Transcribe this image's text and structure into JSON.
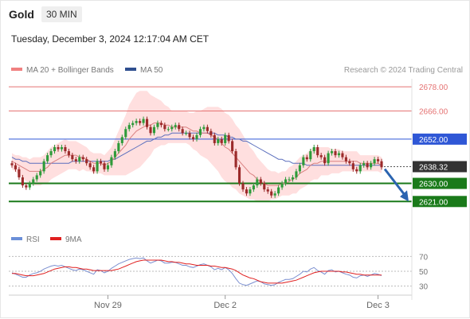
{
  "header": {
    "instrument": "Gold",
    "timeframe": "30 MIN",
    "timestamp": "Tuesday, December 3, 2024 12:17:04 AM CET"
  },
  "legend": {
    "ma20": "MA 20 + Bollinger Bands",
    "ma50": "MA 50",
    "rsi": "RSI",
    "rsi_ma": "9MA",
    "copyright": "Research © 2024 Trading Central"
  },
  "colors": {
    "bull": "#2e9b3a",
    "bear": "#9b2a2a",
    "bollinger": "#ffd2d2",
    "ma20": "#d98080",
    "ma50": "#5b6fbd",
    "resistance": "#e57373",
    "pivot": "#2f57d6",
    "support": "#1a7a1a",
    "current_price": "#333333",
    "rsi": "#7b8fd0",
    "rsi_ma": "#e02020",
    "forecast_arrow": "#2b64b0"
  },
  "chart_data": {
    "type": "candlestick",
    "price_ylim": [
      2614,
      2682
    ],
    "x_labels": [
      {
        "label": "Nov 29",
        "index": 27
      },
      {
        "label": "Dec 2",
        "index": 60
      },
      {
        "label": "Dec 3",
        "index": 103
      }
    ],
    "levels": [
      {
        "value": 2678.0,
        "label": "2678.00",
        "kind": "resistance"
      },
      {
        "value": 2666.0,
        "label": "2666.00",
        "kind": "resistance"
      },
      {
        "value": 2652.0,
        "label": "2652.00",
        "kind": "pivot"
      },
      {
        "value": 2638.32,
        "label": "2638.32",
        "kind": "current"
      },
      {
        "value": 2630.0,
        "label": "2630.00",
        "kind": "support"
      },
      {
        "value": 2621.0,
        "label": "2621.00",
        "kind": "support"
      }
    ],
    "close": [
      2639,
      2637,
      2633,
      2629,
      2628,
      2630,
      2632,
      2634,
      2636,
      2641,
      2644,
      2646,
      2648,
      2647,
      2648,
      2646,
      2644,
      2642,
      2641,
      2643,
      2642,
      2640,
      2638,
      2636,
      2641,
      2640,
      2637,
      2639,
      2643,
      2646,
      2650,
      2653,
      2657,
      2659,
      2660,
      2661,
      2660,
      2662,
      2658,
      2655,
      2658,
      2660,
      2659,
      2657,
      2657,
      2658,
      2659,
      2657,
      2655,
      2655,
      2653,
      2652,
      2654,
      2657,
      2658,
      2656,
      2654,
      2650,
      2652,
      2650,
      2654,
      2651,
      2646,
      2638,
      2630,
      2627,
      2625,
      2627,
      2629,
      2632,
      2630,
      2627,
      2626,
      2624,
      2625,
      2628,
      2630,
      2632,
      2632,
      2633,
      2636,
      2639,
      2643,
      2642,
      2646,
      2648,
      2644,
      2643,
      2640,
      2645,
      2646,
      2644,
      2645,
      2643,
      2641,
      2640,
      2637,
      2636,
      2639,
      2640,
      2638,
      2640,
      2642,
      2641,
      2638
    ],
    "ma20": [
      2641,
      2640,
      2639,
      2638,
      2637,
      2636,
      2636,
      2636,
      2636,
      2637,
      2638,
      2640,
      2641,
      2642,
      2643,
      2644,
      2644,
      2644,
      2644,
      2643,
      2643,
      2642,
      2641,
      2640,
      2640,
      2640,
      2639,
      2640,
      2641,
      2643,
      2645,
      2647,
      2649,
      2652,
      2654,
      2656,
      2657,
      2658,
      2659,
      2659,
      2660,
      2660,
      2660,
      2659,
      2659,
      2658,
      2658,
      2658,
      2658,
      2658,
      2657,
      2656,
      2656,
      2655,
      2655,
      2655,
      2654,
      2653,
      2652,
      2650,
      2648,
      2647,
      2645,
      2643,
      2641,
      2639,
      2637,
      2635,
      2634,
      2632,
      2631,
      2630,
      2629,
      2629,
      2629,
      2629,
      2630,
      2630,
      2631,
      2632,
      2633,
      2635,
      2636,
      2637,
      2639,
      2640,
      2640,
      2641,
      2641,
      2641,
      2641,
      2641,
      2641,
      2641,
      2641,
      2641,
      2641,
      2641,
      2640,
      2640,
      2640,
      2640,
      2640,
      2640,
      2639
    ],
    "ma50": [
      2643,
      2642,
      2642,
      2641,
      2641,
      2640,
      2640,
      2640,
      2640,
      2640,
      2640,
      2640,
      2640,
      2640,
      2640,
      2640,
      2640,
      2641,
      2641,
      2641,
      2641,
      2641,
      2641,
      2641,
      2641,
      2641,
      2641,
      2641,
      2642,
      2642,
      2643,
      2644,
      2645,
      2646,
      2647,
      2648,
      2649,
      2650,
      2651,
      2651,
      2652,
      2653,
      2653,
      2654,
      2654,
      2655,
      2655,
      2655,
      2655,
      2655,
      2655,
      2655,
      2655,
      2655,
      2655,
      2655,
      2655,
      2655,
      2654,
      2654,
      2654,
      2653,
      2653,
      2652,
      2652,
      2651,
      2651,
      2650,
      2649,
      2648,
      2647,
      2646,
      2645,
      2644,
      2643,
      2642,
      2642,
      2641,
      2641,
      2640,
      2640,
      2640,
      2640,
      2639,
      2639,
      2639,
      2639,
      2639,
      2639,
      2639,
      2639,
      2639,
      2639,
      2639,
      2639,
      2639,
      2639,
      2639,
      2639,
      2639,
      2639,
      2639,
      2639,
      2639,
      2639
    ],
    "bollinger_width": [
      4,
      4,
      5,
      5,
      6,
      6,
      7,
      7,
      7,
      7,
      8,
      8,
      8,
      8,
      8,
      8,
      7,
      7,
      7,
      7,
      6,
      6,
      5,
      5,
      5,
      5,
      5,
      6,
      7,
      9,
      11,
      13,
      15,
      17,
      18,
      19,
      19,
      18,
      17,
      15,
      13,
      12,
      11,
      10,
      9,
      8,
      8,
      8,
      8,
      8,
      8,
      9,
      10,
      11,
      12,
      13,
      14,
      15,
      16,
      17,
      17,
      17,
      17,
      16,
      16,
      15,
      14,
      13,
      12,
      11,
      10,
      9,
      8,
      7,
      7,
      6,
      6,
      6,
      7,
      7,
      8,
      8,
      8,
      8,
      8,
      8,
      8,
      7,
      7,
      7,
      6,
      6,
      6,
      5,
      5,
      5,
      5,
      5,
      4,
      4,
      4,
      4,
      4,
      4,
      4
    ],
    "rsi_ylim": [
      20,
      80
    ],
    "rsi_ticks": [
      70,
      50,
      30
    ],
    "rsi": [
      48,
      46,
      44,
      42,
      42,
      45,
      47,
      48,
      50,
      53,
      55,
      57,
      58,
      57,
      58,
      56,
      54,
      52,
      51,
      53,
      52,
      50,
      48,
      46,
      52,
      51,
      48,
      50,
      54,
      57,
      60,
      62,
      64,
      66,
      67,
      68,
      67,
      68,
      64,
      61,
      63,
      65,
      64,
      61,
      61,
      62,
      62,
      60,
      58,
      58,
      56,
      55,
      57,
      59,
      60,
      58,
      56,
      52,
      54,
      52,
      55,
      52,
      47,
      40,
      34,
      32,
      31,
      33,
      35,
      37,
      36,
      33,
      32,
      31,
      32,
      35,
      37,
      39,
      39,
      40,
      43,
      46,
      50,
      49,
      53,
      55,
      51,
      49,
      46,
      51,
      52,
      49,
      50,
      48,
      46,
      45,
      42,
      41,
      44,
      45,
      43,
      45,
      47,
      46,
      44
    ],
    "rsi_ma": [
      47,
      47,
      46,
      45,
      44,
      44,
      44,
      45,
      46,
      47,
      49,
      51,
      53,
      54,
      55,
      56,
      56,
      55,
      55,
      54,
      53,
      53,
      52,
      51,
      51,
      51,
      51,
      51,
      51,
      52,
      53,
      55,
      57,
      59,
      61,
      63,
      64,
      65,
      65,
      65,
      65,
      65,
      65,
      64,
      63,
      63,
      62,
      62,
      61,
      60,
      60,
      59,
      58,
      58,
      58,
      58,
      57,
      57,
      56,
      55,
      55,
      54,
      53,
      51,
      48,
      45,
      43,
      41,
      40,
      38,
      36,
      35,
      34,
      34,
      34,
      34,
      34,
      35,
      36,
      37,
      38,
      40,
      42,
      44,
      46,
      48,
      49,
      50,
      50,
      50,
      50,
      50,
      50,
      49,
      49,
      48,
      47,
      46,
      46,
      45,
      45,
      45,
      45,
      45,
      45
    ]
  }
}
